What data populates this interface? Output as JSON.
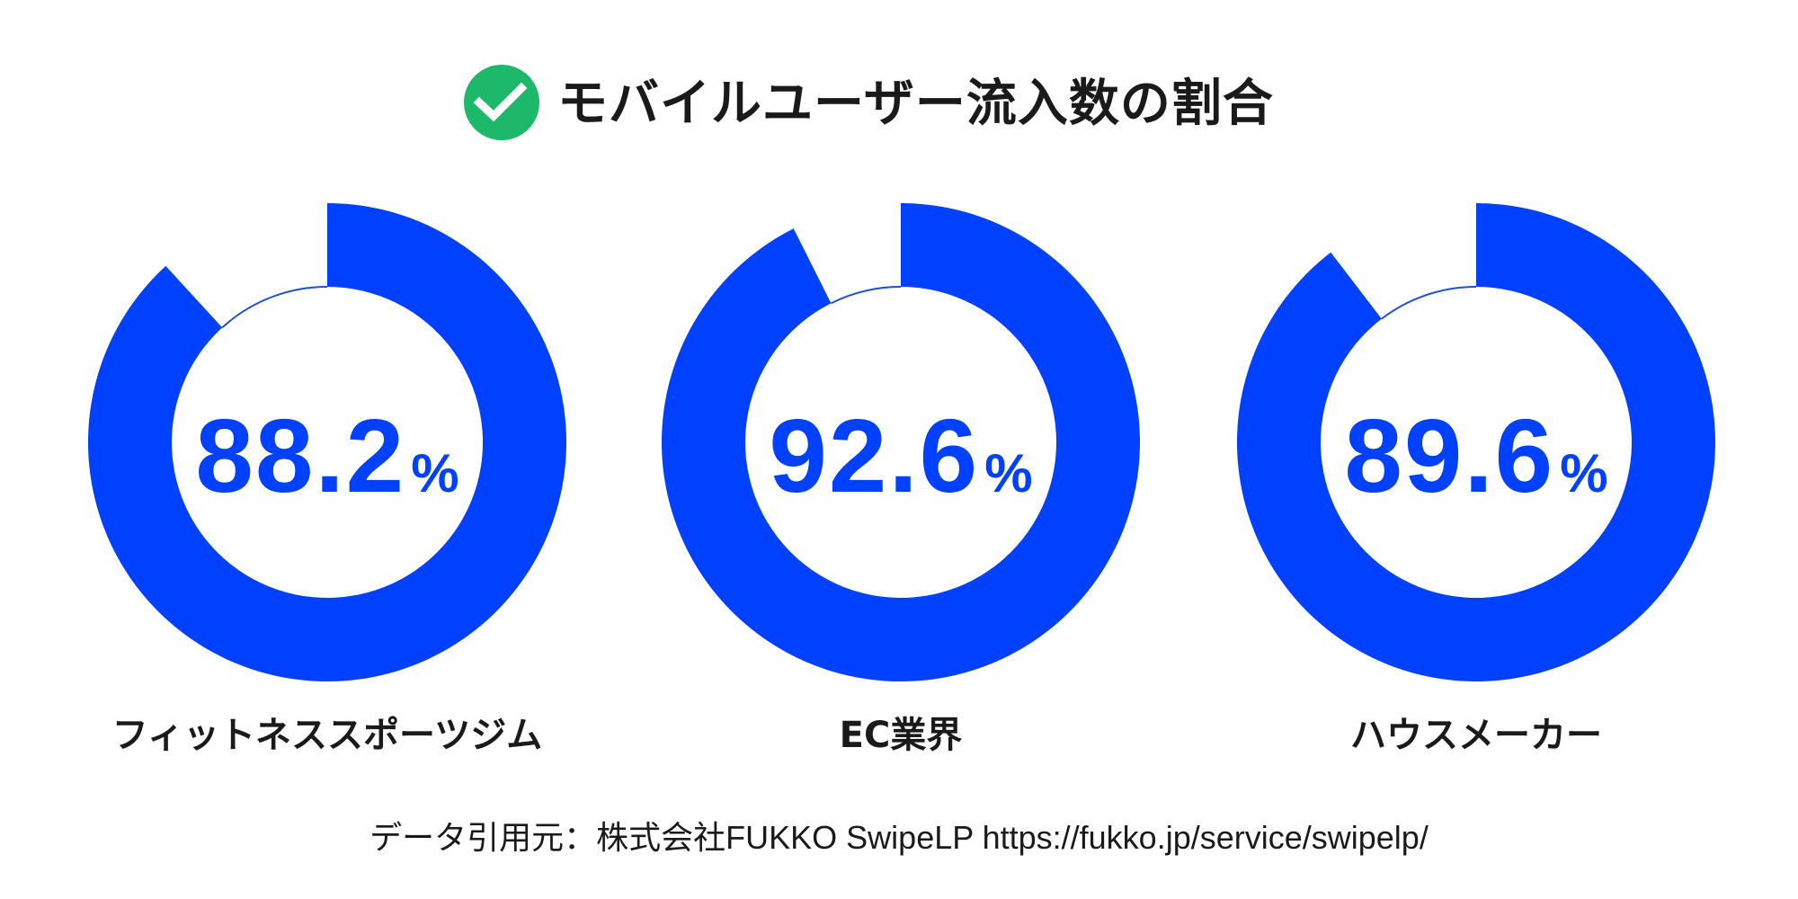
{
  "header": {
    "title": "モバイルユーザー流入数の割合",
    "icon": "check-circle-icon",
    "icon_color": "#1db86a"
  },
  "colors": {
    "ring": "#0040ff",
    "text": "#1a1a1a",
    "background": "#ffffff"
  },
  "donuts": [
    {
      "label": "フィットネススポーツジム",
      "value": "88.2",
      "unit": "%"
    },
    {
      "label": "EC業界",
      "value": "92.6",
      "unit": "%"
    },
    {
      "label": "ハウスメーカー",
      "value": "89.6",
      "unit": "%"
    }
  ],
  "footer": {
    "source": "データ引用元：株式会社FUKKO SwipeLP https://fukko.jp/service/swipelp/"
  },
  "chart_data": {
    "type": "pie",
    "subtype": "donut",
    "title": "モバイルユーザー流入数の割合",
    "categories": [
      "フィットネススポーツジム",
      "EC業界",
      "ハウスメーカー"
    ],
    "values": [
      88.2,
      92.6,
      89.6
    ],
    "unit": "%",
    "max": 100,
    "start_angle": "12 o'clock, clockwise",
    "series": [
      {
        "name": "フィットネススポーツジム",
        "values": [
          88.2,
          11.8
        ]
      },
      {
        "name": "EC業界",
        "values": [
          92.6,
          7.4
        ]
      },
      {
        "name": "ハウスメーカー",
        "values": [
          89.6,
          10.4
        ]
      }
    ],
    "legend": "none",
    "source": "データ引用元：株式会社FUKKO SwipeLP https://fukko.jp/service/swipelp/"
  }
}
